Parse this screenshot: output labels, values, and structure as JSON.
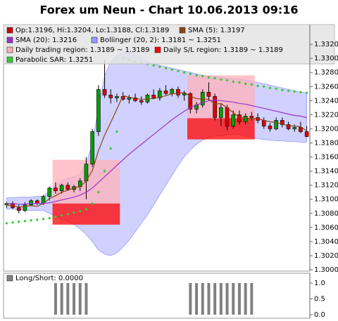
{
  "chart_data": [
    {
      "type": "candlestick",
      "title": "Forex um Neun - Chart 10.06.2013 09:16",
      "ylim": [
        1.2998,
        1.3348
      ],
      "yticks": [
        {
          "value": 1.3,
          "label": "1.3000"
        },
        {
          "value": 1.302,
          "label": "1.3020"
        },
        {
          "value": 1.304,
          "label": "1.3040"
        },
        {
          "value": 1.306,
          "label": "1.3060"
        },
        {
          "value": 1.308,
          "label": "1.3080"
        },
        {
          "value": 1.31,
          "label": "1.3100"
        },
        {
          "value": 1.312,
          "label": "1.3120"
        },
        {
          "value": 1.314,
          "label": "1.3140"
        },
        {
          "value": 1.316,
          "label": "1.3160"
        },
        {
          "value": 1.318,
          "label": "1.3180"
        },
        {
          "value": 1.32,
          "label": "1.3200"
        },
        {
          "value": 1.322,
          "label": "1.3220"
        },
        {
          "value": 1.324,
          "label": "1.3240"
        },
        {
          "value": 1.326,
          "label": "1.3260"
        },
        {
          "value": 1.328,
          "label": "1.3280"
        },
        {
          "value": 1.33,
          "label": "1.3300"
        },
        {
          "value": 1.332,
          "label": "1.3320"
        }
      ],
      "grid": false,
      "ohlc": {
        "name": "Op:1.3196, Hi:1.3204, Lo:1.3188, Cl:1.3189",
        "color": "#cc0000",
        "up_color": "#00a000",
        "down_color": "#e00000",
        "open": [
          1.3092,
          1.3094,
          1.3088,
          1.3084,
          1.3092,
          1.3098,
          1.3094,
          1.3104,
          1.3116,
          1.3112,
          1.312,
          1.3114,
          1.3118,
          1.3126,
          1.315,
          1.3196,
          1.3256,
          1.3248,
          1.3244,
          1.3246,
          1.3242,
          1.3244,
          1.324,
          1.3238,
          1.3248,
          1.3244,
          1.3254,
          1.325,
          1.3256,
          1.3248,
          1.325,
          1.3228,
          1.3234,
          1.3252,
          1.3246,
          1.3216,
          1.323,
          1.3204,
          1.322,
          1.321,
          1.3218,
          1.3216,
          1.3212,
          1.3204,
          1.32,
          1.3212,
          1.3206,
          1.32,
          1.3202,
          1.3196
        ],
        "high": [
          1.3096,
          1.3097,
          1.3092,
          1.3096,
          1.31,
          1.31,
          1.3106,
          1.3118,
          1.3124,
          1.3122,
          1.3124,
          1.312,
          1.313,
          1.316,
          1.32,
          1.3262,
          1.3298,
          1.3256,
          1.325,
          1.3252,
          1.3248,
          1.325,
          1.3246,
          1.325,
          1.3256,
          1.3258,
          1.3262,
          1.3258,
          1.326,
          1.3254,
          1.3252,
          1.3238,
          1.3256,
          1.3266,
          1.325,
          1.3236,
          1.3234,
          1.3226,
          1.3226,
          1.3222,
          1.3224,
          1.3222,
          1.3216,
          1.3208,
          1.3216,
          1.3216,
          1.321,
          1.3206,
          1.321,
          1.3204
        ],
        "low": [
          1.3088,
          1.3086,
          1.308,
          1.3082,
          1.309,
          1.3092,
          1.3092,
          1.3098,
          1.3108,
          1.3108,
          1.3112,
          1.311,
          1.3112,
          1.31,
          1.3146,
          1.319,
          1.3244,
          1.3236,
          1.3238,
          1.324,
          1.3236,
          1.3238,
          1.3234,
          1.3236,
          1.3242,
          1.324,
          1.3248,
          1.3246,
          1.3244,
          1.324,
          1.3222,
          1.3222,
          1.323,
          1.324,
          1.3212,
          1.3204,
          1.3198,
          1.32,
          1.3206,
          1.3206,
          1.3212,
          1.3208,
          1.32,
          1.3196,
          1.3198,
          1.3202,
          1.3198,
          1.3196,
          1.3194,
          1.3188
        ],
        "close": [
          1.3094,
          1.3088,
          1.3084,
          1.3092,
          1.3098,
          1.3094,
          1.3104,
          1.3116,
          1.3112,
          1.312,
          1.3114,
          1.3118,
          1.3126,
          1.315,
          1.3196,
          1.3256,
          1.3248,
          1.3244,
          1.3246,
          1.3242,
          1.3244,
          1.324,
          1.3238,
          1.3248,
          1.3244,
          1.3254,
          1.325,
          1.3256,
          1.3248,
          1.325,
          1.3228,
          1.3234,
          1.3252,
          1.3246,
          1.3216,
          1.323,
          1.3204,
          1.322,
          1.321,
          1.3218,
          1.3216,
          1.3212,
          1.3204,
          1.32,
          1.3212,
          1.3206,
          1.32,
          1.3202,
          1.3196,
          1.3189
        ]
      },
      "series": [
        {
          "name": "SMA (5): 1.3197",
          "color": "#8b4513",
          "type": "line",
          "values": [
            1.3092,
            1.3091,
            1.3089,
            1.309,
            1.3091,
            1.309,
            1.3094,
            1.3101,
            1.3105,
            1.311,
            1.3113,
            1.3116,
            1.3118,
            1.3126,
            1.3141,
            1.3169,
            1.3191,
            1.3209,
            1.3228,
            1.3247,
            1.3245,
            1.3243,
            1.3242,
            1.3242,
            1.3243,
            1.3245,
            1.3247,
            1.325,
            1.325,
            1.3252,
            1.3246,
            1.3243,
            1.3242,
            1.3242,
            1.3235,
            1.3236,
            1.323,
            1.3223,
            1.3216,
            1.3216,
            1.3214,
            1.3215,
            1.3212,
            1.321,
            1.3209,
            1.3207,
            1.3204,
            1.3204,
            1.3203,
            1.3197
          ]
        },
        {
          "name": "SMA (20): 1.3216",
          "color": "#9933cc",
          "type": "line",
          "values": [
            1.3094,
            1.3094,
            1.3093,
            1.3093,
            1.3094,
            1.3094,
            1.3094,
            1.3095,
            1.3097,
            1.3099,
            1.3101,
            1.3103,
            1.3106,
            1.311,
            1.3116,
            1.3124,
            1.3132,
            1.314,
            1.3148,
            1.3156,
            1.3164,
            1.3171,
            1.3178,
            1.3185,
            1.3192,
            1.3199,
            1.3206,
            1.3213,
            1.3219,
            1.3225,
            1.323,
            1.3234,
            1.3237,
            1.324,
            1.3241,
            1.324,
            1.3239,
            1.3238,
            1.3236,
            1.3235,
            1.3233,
            1.3231,
            1.3229,
            1.3227,
            1.3225,
            1.3223,
            1.3221,
            1.3219,
            1.3218,
            1.3216
          ]
        },
        {
          "name": "Bollinger (20, 2): 1.3181 ~ 1.3251",
          "color": "#9999ff",
          "type": "band",
          "upper": [
            1.3102,
            1.3102,
            1.3103,
            1.3103,
            1.3103,
            1.3104,
            1.3104,
            1.3112,
            1.312,
            1.3126,
            1.313,
            1.3132,
            1.3136,
            1.315,
            1.318,
            1.323,
            1.3275,
            1.3295,
            1.3304,
            1.3308,
            1.3309,
            1.3306,
            1.33,
            1.3296,
            1.3292,
            1.329,
            1.3288,
            1.3286,
            1.3284,
            1.3282,
            1.328,
            1.3278,
            1.3276,
            1.3275,
            1.3274,
            1.3273,
            1.3272,
            1.3271,
            1.327,
            1.3269,
            1.3268,
            1.3266,
            1.3264,
            1.3262,
            1.326,
            1.3258,
            1.3256,
            1.3254,
            1.3252,
            1.3251
          ],
          "lower": [
            1.3086,
            1.3086,
            1.3085,
            1.3085,
            1.3084,
            1.3084,
            1.3084,
            1.308,
            1.3076,
            1.3072,
            1.3068,
            1.3064,
            1.3058,
            1.305,
            1.304,
            1.3028,
            1.3022,
            1.302,
            1.3024,
            1.3032,
            1.3042,
            1.3054,
            1.3066,
            1.3078,
            1.3092,
            1.3106,
            1.312,
            1.3134,
            1.3148,
            1.316,
            1.317,
            1.3178,
            1.3184,
            1.3188,
            1.319,
            1.319,
            1.3192,
            1.3192,
            1.3192,
            1.319,
            1.3188,
            1.3186,
            1.3185,
            1.3184,
            1.3183,
            1.3183,
            1.3182,
            1.3182,
            1.3181,
            1.3181
          ]
        },
        {
          "name": "Daily trading region: 1.3189 ~ 1.3189",
          "color": "#ffb0b8",
          "type": "region",
          "regions": [
            {
              "from": 8,
              "to": 18,
              "low": 1.3094,
              "high": 1.3156
            },
            {
              "from": 30,
              "to": 40,
              "low": 1.3215,
              "high": 1.3276
            }
          ]
        },
        {
          "name": "Daily S/L region: 1.3189 ~ 1.3189",
          "color": "#ff0000",
          "type": "region",
          "regions": [
            {
              "from": 8,
              "to": 18,
              "low": 1.3064,
              "high": 1.3094
            },
            {
              "from": 30,
              "to": 40,
              "low": 1.3185,
              "high": 1.3215
            }
          ]
        },
        {
          "name": "Parabolic SAR: 1.3251",
          "color": "#33cc33",
          "type": "dots",
          "values": [
            1.3066,
            1.3067,
            1.3068,
            1.3069,
            1.307,
            1.3071,
            1.3072,
            1.3073,
            1.3075,
            1.3077,
            1.3079,
            1.3081,
            1.3083,
            1.3086,
            1.3094,
            1.311,
            1.314,
            1.3172,
            1.3196,
            1.33,
            1.3298,
            1.3296,
            1.3294,
            1.3292,
            1.329,
            1.3288,
            1.3286,
            1.3284,
            1.3282,
            1.328,
            1.3278,
            1.3276,
            1.3275,
            1.3273,
            1.3272,
            1.327,
            1.3269,
            1.3267,
            1.3266,
            1.3264,
            1.3263,
            1.3261,
            1.326,
            1.3258,
            1.3257,
            1.3255,
            1.3254,
            1.3253,
            1.3252,
            1.3251
          ]
        }
      ]
    },
    {
      "type": "bar",
      "name": "Long/Short: 0.0000",
      "color": "#808080",
      "ylim": [
        -0.1,
        1.3
      ],
      "yticks": [
        {
          "value": 0,
          "label": "0.0"
        },
        {
          "value": 0.5,
          "label": "0.5"
        },
        {
          "value": 1,
          "label": "1.0"
        }
      ],
      "values": [
        0,
        0,
        0,
        0,
        0,
        0,
        0,
        0,
        1,
        1,
        1,
        1,
        1,
        1,
        0,
        0,
        0,
        0,
        0,
        0,
        0,
        0,
        0,
        0,
        0,
        0,
        0,
        0,
        0,
        0,
        1,
        1,
        1,
        1,
        1,
        1,
        1,
        1,
        1,
        1,
        1,
        0,
        0,
        0,
        0,
        0,
        0,
        0,
        0,
        0
      ]
    }
  ]
}
